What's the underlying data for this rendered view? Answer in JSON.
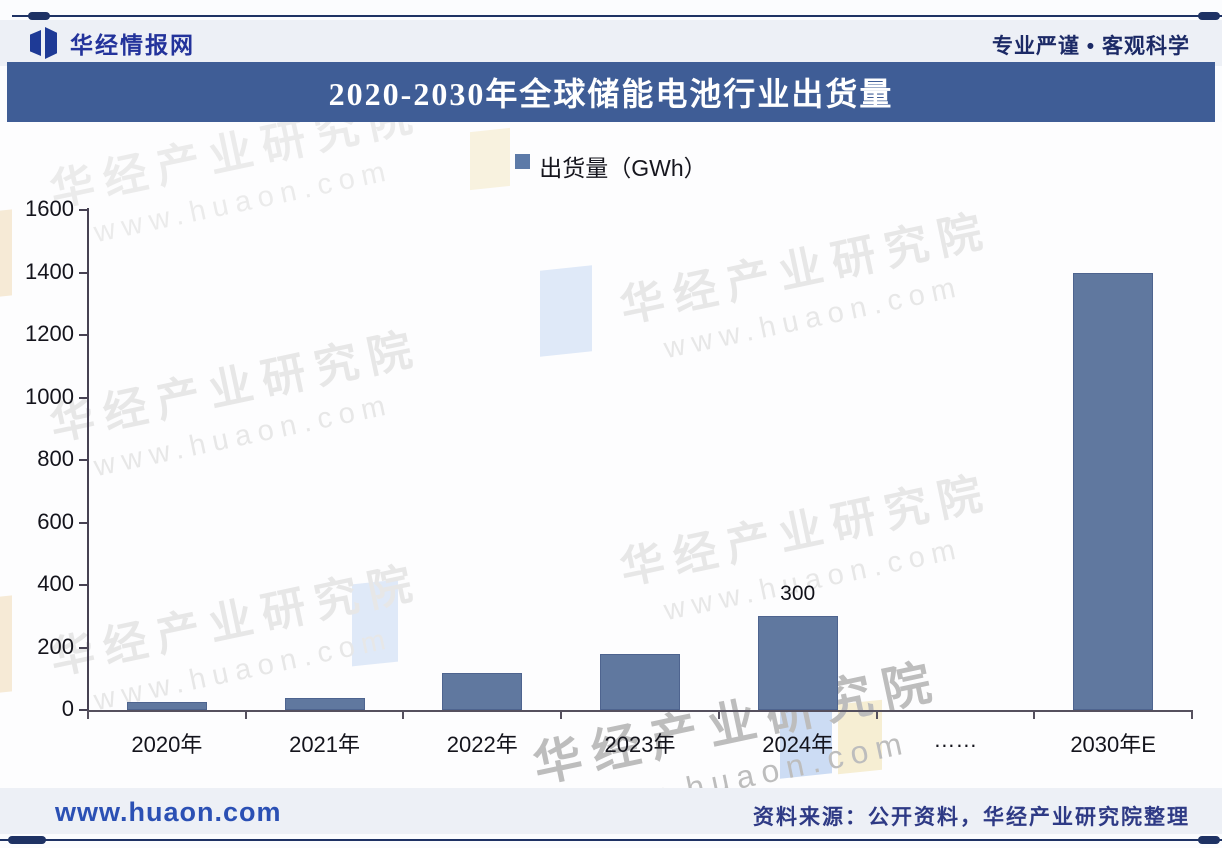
{
  "header": {
    "logo_text": "华经情报网",
    "slogan": "专业严谨 • 客观科学"
  },
  "title_bar": {
    "title": "2020-2030年全球储能电池行业出货量"
  },
  "chart_data": {
    "type": "bar",
    "title": "2020-2030年全球储能电池行业出货量",
    "legend_label": "出货量（GWh）",
    "legend_position": "top-center",
    "categories": [
      "2020年",
      "2021年",
      "2022年",
      "2023年",
      "2024年",
      "……",
      "2030年E"
    ],
    "values": [
      27,
      40,
      120,
      180,
      300,
      null,
      1400
    ],
    "data_labels": [
      "",
      "",
      "",
      "",
      "300",
      "",
      ""
    ],
    "ylim": [
      0,
      1600
    ],
    "yticks": [
      0,
      200,
      400,
      600,
      800,
      1000,
      1200,
      1400,
      1600
    ],
    "grid": false,
    "bar_color": "#60789f"
  },
  "watermark": {
    "line1": "华经产业研究院",
    "line2": "www.huaon.com"
  },
  "footer": {
    "site_url": "www.huaon.com",
    "source_note": "资料来源：公开资料，华经产业研究院整理"
  },
  "colors": {
    "title_bar_bg": "#3f5d96",
    "bar": "#60789f",
    "frame_navy": "#1e3264",
    "logo_navy": "#23339b",
    "link_blue": "#2b50b4",
    "source_navy": "#2e3a85"
  }
}
